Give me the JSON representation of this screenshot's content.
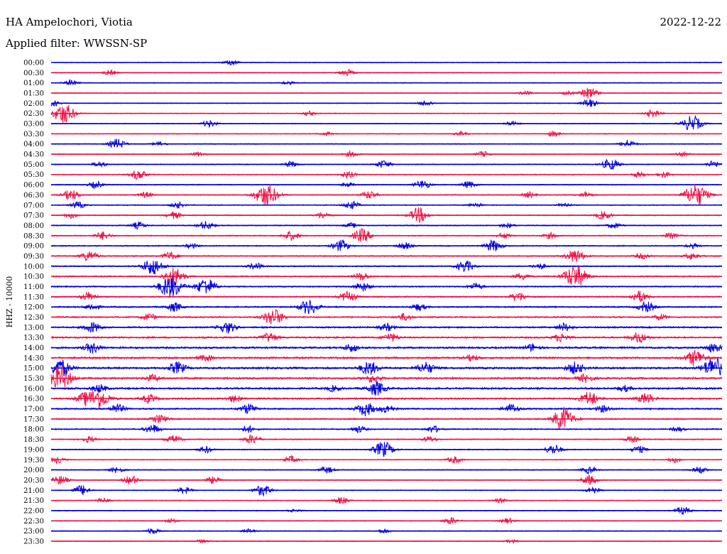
{
  "header": {
    "station": "HA Ampelochori, Viotia",
    "date": "2022-12-22",
    "filter": "Applied filter: WWSSN-SP"
  },
  "chart_data": {
    "type": "line",
    "title": "HA Ampelochori, Viotia",
    "subtitle": "Applied filter: WWSSN-SP",
    "date": "2022-12-22",
    "ylabel": "HHZ - 10000",
    "xlabel": "",
    "grid": false,
    "legend": "none",
    "trace_colors": [
      "#0000dd",
      "#ee1144"
    ],
    "series": [
      {
        "name": "00:00",
        "values": [
          [
            325,
            0.5
          ]
        ]
      },
      {
        "name": "00:30",
        "values": [
          [
            155,
            0.45
          ],
          [
            488,
            0.6
          ]
        ]
      },
      {
        "name": "01:00",
        "values": [
          [
            100,
            0.5
          ],
          [
            405,
            0.3
          ]
        ]
      },
      {
        "name": "01:30",
        "values": [
          [
            740,
            0.35
          ],
          [
            800,
            0.3
          ],
          [
            830,
            1.0
          ]
        ]
      },
      {
        "name": "02:00",
        "values": [
          [
            75,
            0.5
          ],
          [
            600,
            0.5
          ],
          [
            830,
            0.8
          ]
        ]
      },
      {
        "name": "02:30",
        "values": [
          [
            90,
            1.8
          ],
          [
            435,
            0.4
          ],
          [
            920,
            0.7
          ]
        ]
      },
      {
        "name": "03:00",
        "values": [
          [
            295,
            0.6
          ],
          [
            720,
            0.4
          ],
          [
            975,
            1.4
          ]
        ]
      },
      {
        "name": "03:30",
        "values": [
          [
            460,
            0.3
          ],
          [
            650,
            0.35
          ],
          [
            780,
            0.5
          ]
        ]
      },
      {
        "name": "04:00",
        "values": [
          [
            165,
            0.9
          ],
          [
            225,
            0.4
          ],
          [
            885,
            0.7
          ]
        ]
      },
      {
        "name": "04:30",
        "values": [
          [
            280,
            0.4
          ],
          [
            495,
            0.5
          ],
          [
            680,
            0.5
          ],
          [
            960,
            0.4
          ]
        ]
      },
      {
        "name": "05:00",
        "values": [
          [
            140,
            0.5
          ],
          [
            410,
            0.5
          ],
          [
            540,
            0.7
          ],
          [
            860,
            1.0
          ],
          [
            1005,
            0.6
          ]
        ]
      },
      {
        "name": "05:30",
        "values": [
          [
            195,
            0.9
          ],
          [
            490,
            0.6
          ],
          [
            900,
            0.5
          ],
          [
            935,
            0.5
          ]
        ]
      },
      {
        "name": "06:00",
        "values": [
          [
            135,
            0.6
          ],
          [
            490,
            0.4
          ],
          [
            595,
            0.8
          ],
          [
            660,
            0.6
          ]
        ]
      },
      {
        "name": "06:30",
        "values": [
          [
            100,
            0.9
          ],
          [
            205,
            0.5
          ],
          [
            375,
            2.0
          ],
          [
            520,
            0.7
          ],
          [
            745,
            0.5
          ],
          [
            825,
            0.5
          ],
          [
            980,
            2.0
          ]
        ]
      },
      {
        "name": "07:00",
        "values": [
          [
            110,
            0.6
          ],
          [
            250,
            0.5
          ],
          [
            495,
            0.7
          ],
          [
            670,
            0.4
          ],
          [
            795,
            0.4
          ]
        ]
      },
      {
        "name": "07:30",
        "values": [
          [
            100,
            0.5
          ],
          [
            245,
            0.6
          ],
          [
            455,
            0.6
          ],
          [
            590,
            1.3
          ],
          [
            850,
            0.7
          ]
        ]
      },
      {
        "name": "08:00",
        "values": [
          [
            195,
            0.6
          ],
          [
            290,
            0.7
          ],
          [
            495,
            0.4
          ],
          [
            715,
            0.4
          ],
          [
            865,
            0.5
          ]
        ]
      },
      {
        "name": "08:30",
        "values": [
          [
            145,
            0.7
          ],
          [
            410,
            0.8
          ],
          [
            510,
            1.2
          ],
          [
            710,
            0.5
          ],
          [
            775,
            0.5
          ],
          [
            945,
            0.5
          ]
        ]
      },
      {
        "name": "09:00",
        "values": [
          [
            270,
            0.4
          ],
          [
            480,
            1.0
          ],
          [
            570,
            0.6
          ],
          [
            695,
            1.0
          ],
          [
            975,
            0.4
          ]
        ]
      },
      {
        "name": "09:30",
        "values": [
          [
            125,
            0.9
          ],
          [
            240,
            0.7
          ],
          [
            810,
            1.2
          ],
          [
            905,
            0.5
          ],
          [
            975,
            0.6
          ]
        ]
      },
      {
        "name": "10:00",
        "values": [
          [
            215,
            1.5
          ],
          [
            360,
            0.6
          ],
          [
            655,
            1.0
          ],
          [
            760,
            0.5
          ]
        ]
      },
      {
        "name": "10:30",
        "values": [
          [
            245,
            1.6
          ],
          [
            510,
            0.7
          ],
          [
            735,
            0.6
          ],
          [
            810,
            2.0
          ]
        ]
      },
      {
        "name": "11:00",
        "values": [
          [
            240,
            2.0
          ],
          [
            290,
            1.5
          ],
          [
            510,
            0.8
          ],
          [
            670,
            0.6
          ]
        ]
      },
      {
        "name": "11:30",
        "values": [
          [
            125,
            0.8
          ],
          [
            490,
            0.9
          ],
          [
            730,
            0.8
          ],
          [
            900,
            1.0
          ]
        ]
      },
      {
        "name": "12:00",
        "values": [
          [
            130,
            0.6
          ],
          [
            245,
            0.8
          ],
          [
            435,
            1.3
          ],
          [
            590,
            0.6
          ],
          [
            910,
            0.9
          ]
        ]
      },
      {
        "name": "12:30",
        "values": [
          [
            210,
            0.6
          ],
          [
            385,
            1.5
          ],
          [
            570,
            0.6
          ],
          [
            930,
            0.5
          ]
        ]
      },
      {
        "name": "13:00",
        "values": [
          [
            130,
            0.9
          ],
          [
            320,
            1.0
          ],
          [
            545,
            0.6
          ],
          [
            795,
            0.7
          ]
        ]
      },
      {
        "name": "13:30",
        "values": [
          [
            380,
            0.8
          ],
          [
            550,
            0.7
          ],
          [
            790,
            0.7
          ],
          [
            900,
            0.9
          ]
        ]
      },
      {
        "name": "14:00",
        "values": [
          [
            130,
            0.9
          ],
          [
            495,
            0.7
          ],
          [
            750,
            0.6
          ],
          [
            1005,
            0.8
          ]
        ]
      },
      {
        "name": "14:30",
        "values": [
          [
            290,
            0.5
          ],
          [
            665,
            0.5
          ],
          [
            980,
            1.4
          ]
        ]
      },
      {
        "name": "15:00",
        "values": [
          [
            85,
            1.5
          ],
          [
            250,
            1.0
          ],
          [
            520,
            1.2
          ],
          [
            600,
            1.0
          ],
          [
            810,
            1.0
          ],
          [
            1005,
            1.8
          ]
        ]
      },
      {
        "name": "15:30",
        "values": [
          [
            85,
            2.0
          ],
          [
            215,
            0.6
          ],
          [
            525,
            0.7
          ],
          [
            825,
            0.7
          ]
        ]
      },
      {
        "name": "16:00",
        "values": [
          [
            140,
            0.7
          ],
          [
            470,
            0.5
          ],
          [
            530,
            1.2
          ],
          [
            880,
            0.5
          ]
        ]
      },
      {
        "name": "16:30",
        "values": [
          [
            120,
            1.0
          ],
          [
            140,
            1.6
          ],
          [
            210,
            0.7
          ],
          [
            330,
            0.6
          ],
          [
            830,
            1.2
          ],
          [
            910,
            0.9
          ]
        ]
      },
      {
        "name": "17:00",
        "values": [
          [
            165,
            0.8
          ],
          [
            350,
            0.9
          ],
          [
            515,
            1.2
          ],
          [
            545,
            0.7
          ],
          [
            720,
            0.8
          ],
          [
            850,
            0.6
          ]
        ]
      },
      {
        "name": "17:30",
        "values": [
          [
            225,
            0.7
          ],
          [
            790,
            0.8
          ],
          [
            795,
            1.5
          ]
        ]
      },
      {
        "name": "18:00",
        "values": [
          [
            215,
            0.8
          ],
          [
            350,
            0.6
          ],
          [
            505,
            0.6
          ],
          [
            610,
            0.6
          ],
          [
            955,
            0.4
          ]
        ]
      },
      {
        "name": "18:30",
        "values": [
          [
            125,
            0.5
          ],
          [
            245,
            0.7
          ],
          [
            355,
            0.8
          ],
          [
            605,
            0.5
          ],
          [
            890,
            0.5
          ]
        ]
      },
      {
        "name": "19:00",
        "values": [
          [
            290,
            0.6
          ],
          [
            540,
            1.4
          ],
          [
            780,
            0.9
          ],
          [
            900,
            0.6
          ]
        ]
      },
      {
        "name": "19:30",
        "values": [
          [
            80,
            0.6
          ],
          [
            410,
            0.6
          ],
          [
            640,
            0.6
          ],
          [
            950,
            0.5
          ]
        ]
      },
      {
        "name": "20:00",
        "values": [
          [
            165,
            0.5
          ],
          [
            460,
            0.6
          ],
          [
            830,
            0.6
          ],
          [
            985,
            0.6
          ]
        ]
      },
      {
        "name": "20:30",
        "values": [
          [
            85,
            0.8
          ],
          [
            185,
            0.8
          ],
          [
            300,
            0.6
          ],
          [
            830,
            0.8
          ]
        ]
      },
      {
        "name": "21:00",
        "values": [
          [
            115,
            0.9
          ],
          [
            260,
            0.6
          ],
          [
            370,
            1.0
          ],
          [
            835,
            0.6
          ]
        ]
      },
      {
        "name": "21:30",
        "values": [
          [
            145,
            0.4
          ],
          [
            480,
            0.6
          ],
          [
            705,
            0.4
          ]
        ]
      },
      {
        "name": "22:00",
        "values": [
          [
            415,
            0.3
          ],
          [
            962,
            0.7
          ]
        ]
      },
      {
        "name": "22:30",
        "values": [
          [
            240,
            0.4
          ],
          [
            635,
            0.6
          ],
          [
            715,
            0.5
          ]
        ]
      },
      {
        "name": "23:00",
        "values": [
          [
            215,
            0.5
          ],
          [
            350,
            0.4
          ],
          [
            540,
            0.4
          ]
        ]
      },
      {
        "name": "23:30",
        "values": [
          [
            285,
            0.3
          ],
          [
            720,
            0.3
          ]
        ]
      }
    ]
  }
}
